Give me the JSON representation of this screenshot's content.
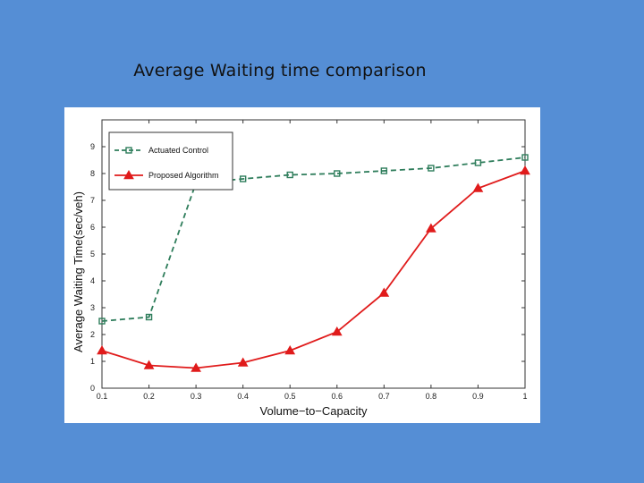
{
  "slide": {
    "title": "Average Waiting time comparison"
  },
  "chart_data": {
    "type": "line",
    "title": "",
    "xlabel": "Volume−to−Capacity",
    "ylabel": "Average Waiting Time(sec/veh)",
    "xlim": [
      0.1,
      1
    ],
    "ylim": [
      0,
      10
    ],
    "xticks": [
      "0.1",
      "0.2",
      "0.3",
      "0.4",
      "0.5",
      "0.6",
      "0.7",
      "0.8",
      "0.9",
      "1"
    ],
    "yticks": [
      "0",
      "1",
      "2",
      "3",
      "4",
      "5",
      "6",
      "7",
      "8",
      "9"
    ],
    "x": [
      0.1,
      0.2,
      0.3,
      0.4,
      0.5,
      0.6,
      0.7,
      0.8,
      0.9,
      1.0
    ],
    "grid": false,
    "legend_position": "top-left",
    "series": [
      {
        "name": "Actuated Control",
        "values": [
          2.5,
          2.65,
          7.65,
          7.8,
          7.95,
          8.0,
          8.1,
          8.2,
          8.4,
          8.6
        ],
        "color": "#2e7d5b",
        "line_style": "dashed",
        "marker": "square"
      },
      {
        "name": "Proposed Algorithm",
        "values": [
          1.4,
          0.85,
          0.75,
          0.95,
          1.4,
          2.1,
          3.55,
          5.95,
          7.45,
          8.1
        ],
        "color": "#e01b1b",
        "line_style": "solid",
        "marker": "triangle"
      }
    ]
  }
}
